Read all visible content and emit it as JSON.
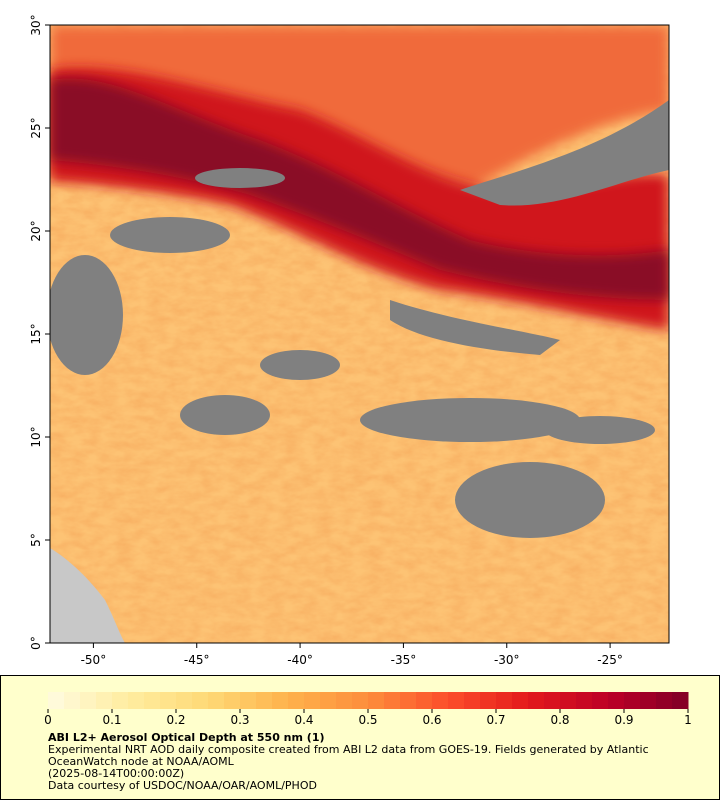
{
  "map": {
    "xlim": [
      -52.1,
      -22.15
    ],
    "ylim": [
      0,
      30
    ],
    "xticks": [
      {
        "value": -50,
        "label": "-50°"
      },
      {
        "value": -45,
        "label": "-45°"
      },
      {
        "value": -40,
        "label": "-40°"
      },
      {
        "value": -35,
        "label": "-35°"
      },
      {
        "value": -30,
        "label": "-30°"
      },
      {
        "value": -25,
        "label": "-25°"
      }
    ],
    "yticks": [
      {
        "value": 0,
        "label": "0°"
      },
      {
        "value": 5,
        "label": "5°"
      },
      {
        "value": 10,
        "label": "10°"
      },
      {
        "value": 15,
        "label": "15°"
      },
      {
        "value": 20,
        "label": "20°"
      },
      {
        "value": 25,
        "label": "25°"
      },
      {
        "value": 30,
        "label": "30°"
      }
    ]
  },
  "colorbar": {
    "clim": [
      0,
      1
    ],
    "ticks": [
      0,
      0.1,
      0.2,
      0.3,
      0.4,
      0.5,
      0.6,
      0.7,
      0.8,
      0.9,
      1
    ],
    "colormap": [
      "#fffbe0",
      "#ffeda0",
      "#fed976",
      "#feb24c",
      "#fd8d3c",
      "#fc4e2a",
      "#e31a1c",
      "#bd0026",
      "#800026"
    ]
  },
  "legend": {
    "title": "ABI L2+ Aerosol Optical Depth at 550 nm (1)",
    "description": "Experimental NRT AOD daily composite created from ABI L2 data from GOES-19. Fields generated by Atlantic OceanWatch node at NOAA/AOML",
    "time": "(2025-08-14T00:00:00Z)",
    "credit": "Data courtesy of USDOC/NOAA/OAR/AOML/PHOD"
  }
}
